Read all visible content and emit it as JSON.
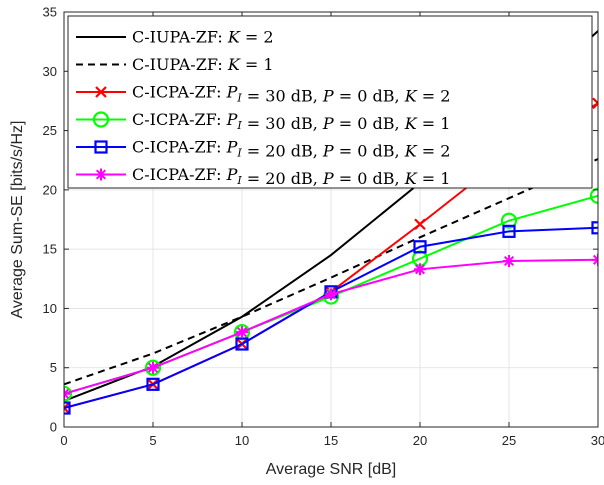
{
  "chart_data": {
    "type": "line",
    "title": "",
    "xlabel": "Average SNR [dB]",
    "ylabel": "Average Sum-SE [bits/s/Hz]",
    "xlim": [
      0,
      30
    ],
    "ylim": [
      0,
      35
    ],
    "xticks": [
      0,
      5,
      10,
      15,
      20,
      25,
      30
    ],
    "yticks": [
      0,
      5,
      10,
      15,
      20,
      25,
      30,
      35
    ],
    "grid": true,
    "legend_position": "top-left",
    "x": [
      0,
      5,
      10,
      15,
      20,
      25,
      30
    ],
    "series": [
      {
        "name": "C-IUPA-ZF: K = 2",
        "legend_parts": [
          [
            "C-IUPA-ZF: ",
            "n"
          ],
          [
            "K",
            "i"
          ],
          [
            " = 2",
            "n"
          ]
        ],
        "color": "#000000",
        "dash": "solid",
        "marker": "none",
        "values": [
          2.2,
          5.1,
          9.3,
          14.5,
          20.6,
          26.6,
          33.4
        ]
      },
      {
        "name": "C-IUPA-ZF: K = 1",
        "legend_parts": [
          [
            "C-IUPA-ZF: ",
            "n"
          ],
          [
            "K",
            "i"
          ],
          [
            " = 1",
            "n"
          ]
        ],
        "color": "#000000",
        "dash": "dashed",
        "marker": "none",
        "values": [
          3.6,
          6.2,
          9.3,
          12.6,
          16.0,
          19.3,
          22.6
        ]
      },
      {
        "name": "C-ICPA-ZF: P_I = 30 dB, P = 0 dB, K = 2",
        "legend_parts": [
          [
            "C-ICPA-ZF: ",
            "n"
          ],
          [
            "P",
            "i"
          ],
          [
            "I",
            "sub"
          ],
          [
            " = 30 dB, ",
            "n"
          ],
          [
            "P",
            "i"
          ],
          [
            " = 0 dB, ",
            "n"
          ],
          [
            "K",
            "i"
          ],
          [
            " = 2",
            "n"
          ]
        ],
        "color": "#ff0000",
        "dash": "solid",
        "marker": "x",
        "values": [
          1.6,
          3.6,
          7.0,
          11.4,
          17.1,
          23.0,
          27.3
        ]
      },
      {
        "name": "C-ICPA-ZF: P_I = 30 dB, P = 0 dB, K = 1",
        "legend_parts": [
          [
            "C-ICPA-ZF: ",
            "n"
          ],
          [
            "P",
            "i"
          ],
          [
            "I",
            "sub"
          ],
          [
            " = 30 dB, ",
            "n"
          ],
          [
            "P",
            "i"
          ],
          [
            " = 0 dB, ",
            "n"
          ],
          [
            "K",
            "i"
          ],
          [
            " = 1",
            "n"
          ]
        ],
        "color": "#00ff00",
        "dash": "solid",
        "marker": "circle",
        "values": [
          2.8,
          5.0,
          8.0,
          11.0,
          14.2,
          17.4,
          19.5
        ]
      },
      {
        "name": "C-ICPA-ZF: P_I = 20 dB, P = 0 dB, K = 2",
        "legend_parts": [
          [
            "C-ICPA-ZF: ",
            "n"
          ],
          [
            "P",
            "i"
          ],
          [
            "I",
            "sub"
          ],
          [
            " = 20 dB, ",
            "n"
          ],
          [
            "P",
            "i"
          ],
          [
            " = 0 dB, ",
            "n"
          ],
          [
            "K",
            "i"
          ],
          [
            " = 2",
            "n"
          ]
        ],
        "color": "#0000ff",
        "dash": "solid",
        "marker": "square",
        "values": [
          1.6,
          3.6,
          7.0,
          11.4,
          15.2,
          16.5,
          16.8
        ]
      },
      {
        "name": "C-ICPA-ZF: P_I = 20 dB, P = 0 dB, K = 1",
        "legend_parts": [
          [
            "C-ICPA-ZF: ",
            "n"
          ],
          [
            "P",
            "i"
          ],
          [
            "I",
            "sub"
          ],
          [
            " = 20 dB, ",
            "n"
          ],
          [
            "P",
            "i"
          ],
          [
            " = 0 dB, ",
            "n"
          ],
          [
            "K",
            "i"
          ],
          [
            " = 1",
            "n"
          ]
        ],
        "color": "#ff00ff",
        "dash": "solid",
        "marker": "asterisk",
        "values": [
          2.8,
          5.0,
          8.0,
          11.2,
          13.3,
          14.0,
          14.1
        ]
      }
    ]
  }
}
